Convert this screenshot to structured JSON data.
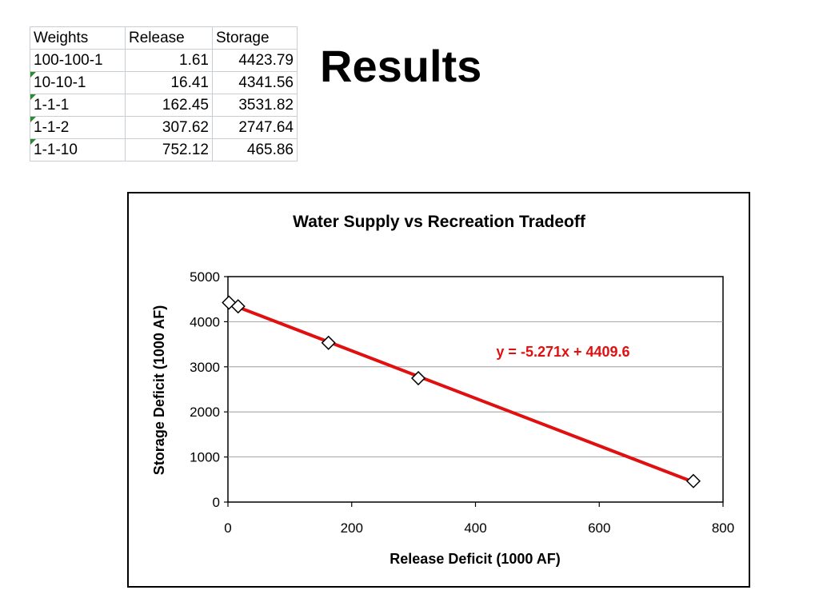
{
  "slide": {
    "title": "Results"
  },
  "table": {
    "headers": [
      "Weights",
      "Release",
      "Storage"
    ],
    "rows": [
      {
        "weights": "100-100-1",
        "release": "1.61",
        "storage": "4423.79",
        "flag": false
      },
      {
        "weights": "10-10-1",
        "release": "16.41",
        "storage": "4341.56",
        "flag": true
      },
      {
        "weights": "1-1-1",
        "release": "162.45",
        "storage": "3531.82",
        "flag": true
      },
      {
        "weights": "1-1-2",
        "release": "307.62",
        "storage": "2747.64",
        "flag": true
      },
      {
        "weights": "1-1-10",
        "release": "752.12",
        "storage": "465.86",
        "flag": true
      }
    ],
    "flag_color": "#2e8b34"
  },
  "chart_data": {
    "type": "scatter",
    "title": "Water Supply vs Recreation Tradeoff",
    "xlabel": "Release Deficit (1000 AF)",
    "ylabel": "Storage Deficit (1000 AF)",
    "xlim": [
      0,
      800
    ],
    "ylim": [
      0,
      5000
    ],
    "xticks": [
      0,
      200,
      400,
      600,
      800
    ],
    "yticks": [
      0,
      1000,
      2000,
      3000,
      4000,
      5000
    ],
    "grid": "horizontal",
    "legend": "none",
    "series": [
      {
        "marker": "diamond",
        "x": [
          1.61,
          16.41,
          162.45,
          307.62,
          752.12
        ],
        "y": [
          4423.79,
          4341.56,
          3531.82,
          2747.64,
          465.86
        ]
      }
    ],
    "trendline": {
      "type": "linear",
      "slope": -5.271,
      "intercept": 4409.6,
      "color": "#e01010",
      "equation_label": "y = -5.271x + 4409.6"
    }
  }
}
